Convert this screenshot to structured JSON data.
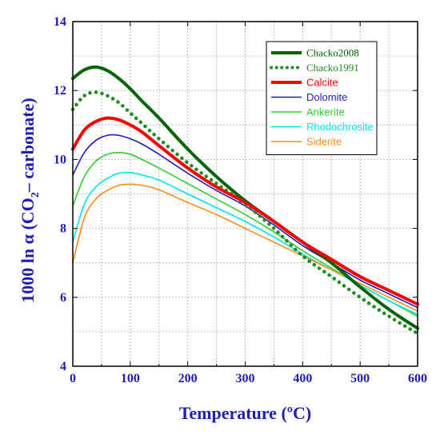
{
  "chart_data": {
    "type": "line",
    "title": "",
    "xlabel": "Temperature (ºC)",
    "ylabel_parts": [
      "1000 ln α (CO",
      "2",
      "– carbonate)"
    ],
    "xlim": [
      0,
      600
    ],
    "ylim": [
      4,
      14
    ],
    "xticks": [
      "0",
      "100",
      "200",
      "300",
      "400",
      "500",
      "600"
    ],
    "yticks": [
      "4",
      "6",
      "8",
      "10",
      "12",
      "14"
    ],
    "grid": true,
    "legend_position": "top-right",
    "x": [
      0,
      20,
      40,
      60,
      80,
      100,
      120,
      150,
      200,
      250,
      300,
      350,
      400,
      450,
      500,
      550,
      600
    ],
    "series": [
      {
        "name": "Chacko2008",
        "color": "#006400",
        "style": "solid-thick",
        "values": [
          12.35,
          12.6,
          12.68,
          12.58,
          12.35,
          12.05,
          11.7,
          11.2,
          10.3,
          9.5,
          8.8,
          8.2,
          7.6,
          7.0,
          6.3,
          5.65,
          5.1
        ]
      },
      {
        "name": "Chacko1991",
        "color": "#228b22",
        "style": "dotted",
        "values": [
          11.45,
          11.85,
          11.95,
          11.85,
          11.65,
          11.35,
          11.05,
          10.6,
          9.9,
          9.3,
          8.7,
          8.0,
          7.2,
          6.6,
          6.0,
          5.45,
          4.95
        ]
      },
      {
        "name": "Calcite",
        "color": "#ff0000",
        "style": "solid-thick",
        "values": [
          10.3,
          10.85,
          11.1,
          11.2,
          11.15,
          11.0,
          10.8,
          10.4,
          9.75,
          9.2,
          8.75,
          8.2,
          7.6,
          7.1,
          6.6,
          6.2,
          5.8
        ]
      },
      {
        "name": "Dolomite",
        "color": "#1f1fb4",
        "style": "solid",
        "values": [
          9.55,
          10.2,
          10.55,
          10.7,
          10.7,
          10.6,
          10.45,
          10.15,
          9.6,
          9.1,
          8.65,
          8.1,
          7.5,
          7.0,
          6.5,
          6.1,
          5.7
        ]
      },
      {
        "name": "Ankerite",
        "color": "#32cd32",
        "style": "solid",
        "values": [
          8.65,
          9.5,
          9.95,
          10.15,
          10.2,
          10.15,
          10.0,
          9.75,
          9.3,
          8.85,
          8.4,
          7.9,
          7.35,
          6.85,
          6.35,
          5.9,
          5.45
        ]
      },
      {
        "name": "Rhodochrosite",
        "color": "#00e5ee",
        "style": "solid",
        "values": [
          7.6,
          8.7,
          9.2,
          9.45,
          9.6,
          9.62,
          9.55,
          9.4,
          9.0,
          8.6,
          8.2,
          7.75,
          7.25,
          6.8,
          6.35,
          5.9,
          5.5
        ]
      },
      {
        "name": "Siderite",
        "color": "#ff8c1a",
        "style": "solid",
        "values": [
          7.0,
          8.3,
          8.85,
          9.1,
          9.25,
          9.28,
          9.25,
          9.12,
          8.75,
          8.4,
          8.0,
          7.6,
          7.2,
          6.8,
          6.4,
          6.0,
          5.6
        ]
      }
    ]
  }
}
